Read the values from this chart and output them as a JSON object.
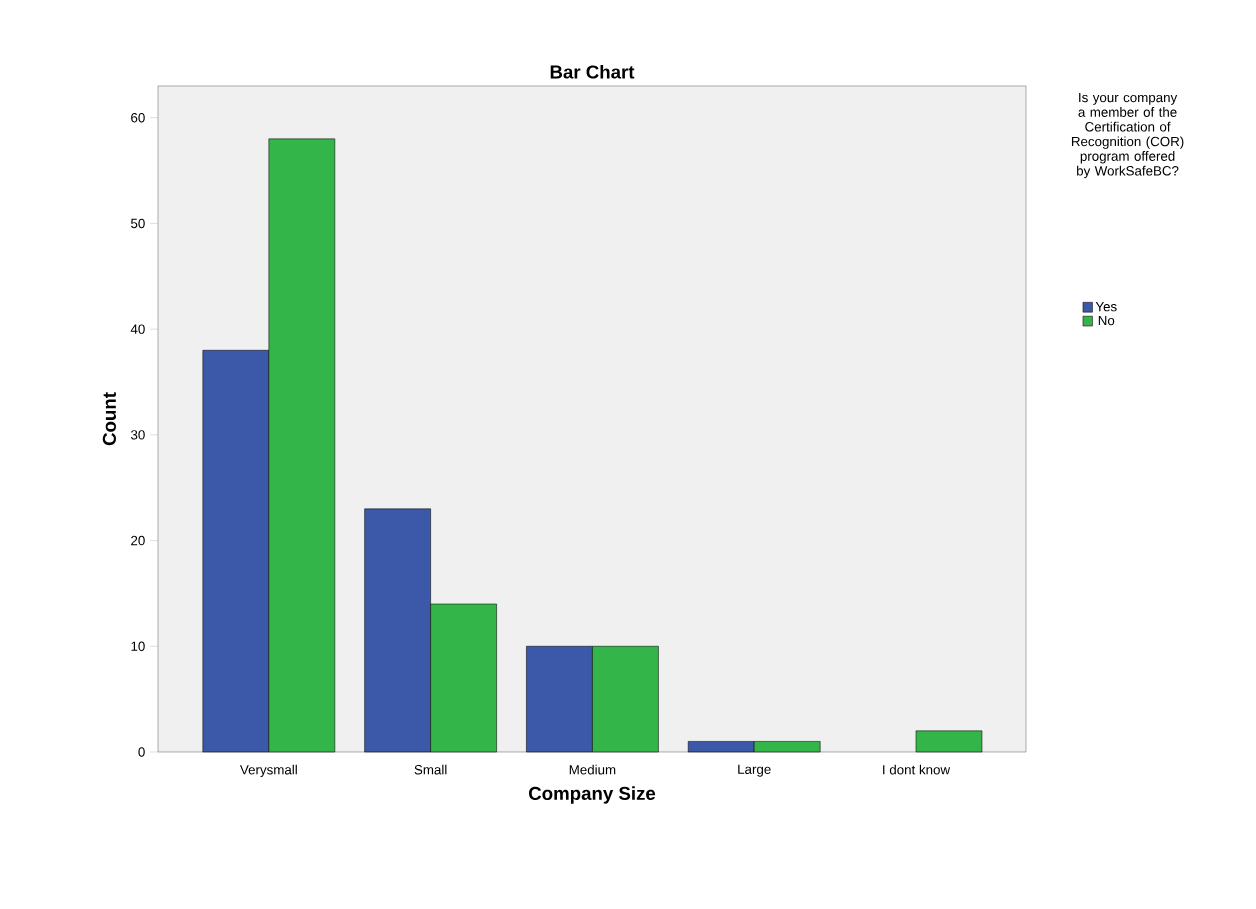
{
  "chart_data": {
    "type": "bar",
    "title": "Bar Chart",
    "xlabel": "Company Size",
    "ylabel": "Count",
    "legend_title": "Is your company a member of the Certification of Recognition (COR) program offered by WorkSafeBC?",
    "categories": [
      "Verysmall",
      "Small",
      "Medium",
      "Large",
      "I dont know"
    ],
    "series": [
      {
        "name": "Yes",
        "color": "#3c58a8",
        "values": [
          38,
          23,
          10,
          1,
          null
        ]
      },
      {
        "name": "No",
        "color": "#33b54a",
        "values": [
          58,
          14,
          10,
          1,
          2
        ]
      }
    ],
    "ylim": [
      0,
      63
    ],
    "yticks": [
      0,
      10,
      20,
      30,
      40,
      50,
      60
    ],
    "grid": false,
    "legend": "right"
  }
}
